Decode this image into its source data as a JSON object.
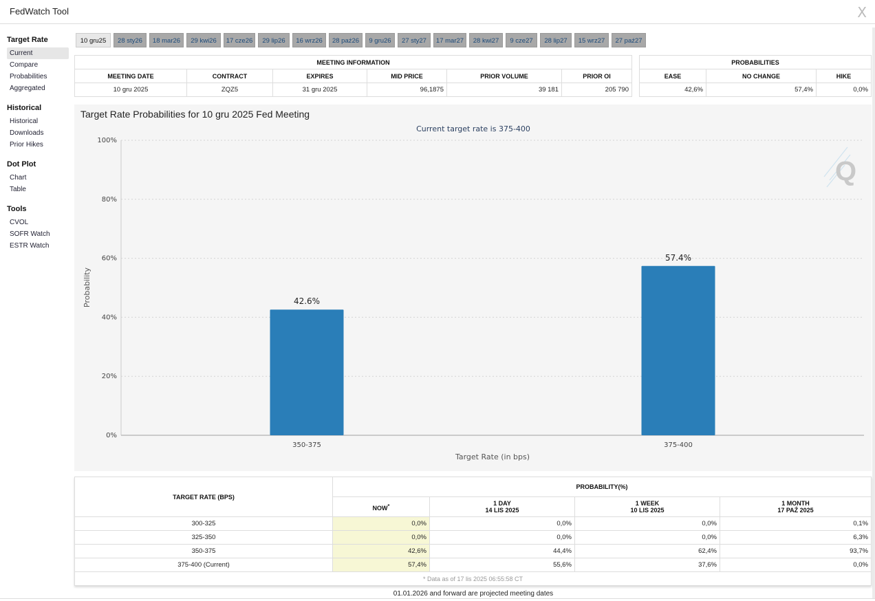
{
  "app": {
    "title": "FedWatch Tool",
    "close_label": "X"
  },
  "sidebar": {
    "groups": [
      {
        "title": "Target Rate",
        "items": [
          "Current",
          "Compare",
          "Probabilities",
          "Aggregated"
        ]
      },
      {
        "title": "Historical",
        "items": [
          "Historical",
          "Downloads",
          "Prior Hikes"
        ]
      },
      {
        "title": "Dot Plot",
        "items": [
          "Chart",
          "Table"
        ]
      },
      {
        "title": "Tools",
        "items": [
          "CVOL",
          "SOFR Watch",
          "ESTR Watch"
        ]
      }
    ]
  },
  "tabs": [
    "10 gru25",
    "28 sty26",
    "18 mar26",
    "29 kwi26",
    "17 cze26",
    "29 lip26",
    "16 wrz26",
    "28 paź26",
    "9 gru26",
    "27 sty27",
    "17 mar27",
    "28 kwi27",
    "9 cze27",
    "28 lip27",
    "15 wrz27",
    "27 paź27"
  ],
  "meeting_info": {
    "title": "MEETING INFORMATION",
    "headers": [
      "MEETING DATE",
      "CONTRACT",
      "EXPIRES",
      "MID PRICE",
      "PRIOR VOLUME",
      "PRIOR OI"
    ],
    "values": [
      "10 gru 2025",
      "ZQZ5",
      "31 gru 2025",
      "96,1875",
      "39 181",
      "205 790"
    ]
  },
  "probabilities": {
    "title": "PROBABILITIES",
    "headers": [
      "EASE",
      "NO CHANGE",
      "HIKE"
    ],
    "values": [
      "42,6%",
      "57,4%",
      "0,0%"
    ]
  },
  "chart_title": "Target Rate Probabilities for 10 gru 2025 Fed Meeting",
  "chart_data": {
    "type": "bar",
    "subtitle": "Current target rate is 375-400",
    "categories": [
      "350-375",
      "375-400"
    ],
    "values": [
      42.6,
      57.4
    ],
    "value_labels": [
      "42.6%",
      "57.4%"
    ],
    "xlabel": "Target Rate (in bps)",
    "ylabel": "Probability",
    "ylim": [
      0,
      100
    ],
    "yticks": [
      "0%",
      "20%",
      "40%",
      "60%",
      "80%",
      "100%"
    ],
    "color": "#2a7eb8",
    "grid": true
  },
  "bottom_table": {
    "col_target": "TARGET RATE (BPS)",
    "col_group": "PROBABILITY(%)",
    "now_label": "NOW",
    "now_marker": "*",
    "day_label": "1 DAY",
    "day_date": "14 LIS 2025",
    "week_label": "1 WEEK",
    "week_date": "10 LIS 2025",
    "month_label": "1 MONTH",
    "month_date": "17 PAŹ 2025",
    "rows": [
      {
        "rate": "300-325",
        "now": "0,0%",
        "day": "0,0%",
        "week": "0,0%",
        "month": "0,1%"
      },
      {
        "rate": "325-350",
        "now": "0,0%",
        "day": "0,0%",
        "week": "0,0%",
        "month": "6,3%"
      },
      {
        "rate": "350-375",
        "now": "42,6%",
        "day": "44,4%",
        "week": "62,4%",
        "month": "93,7%"
      },
      {
        "rate": "375-400 (Current)",
        "now": "57,4%",
        "day": "55,6%",
        "week": "37,6%",
        "month": "0,0%"
      }
    ],
    "data_note": "* Data as of 17 lis 2025 06:55:58 CT"
  },
  "footer_note": "01.01.2026 and forward are projected meeting dates"
}
